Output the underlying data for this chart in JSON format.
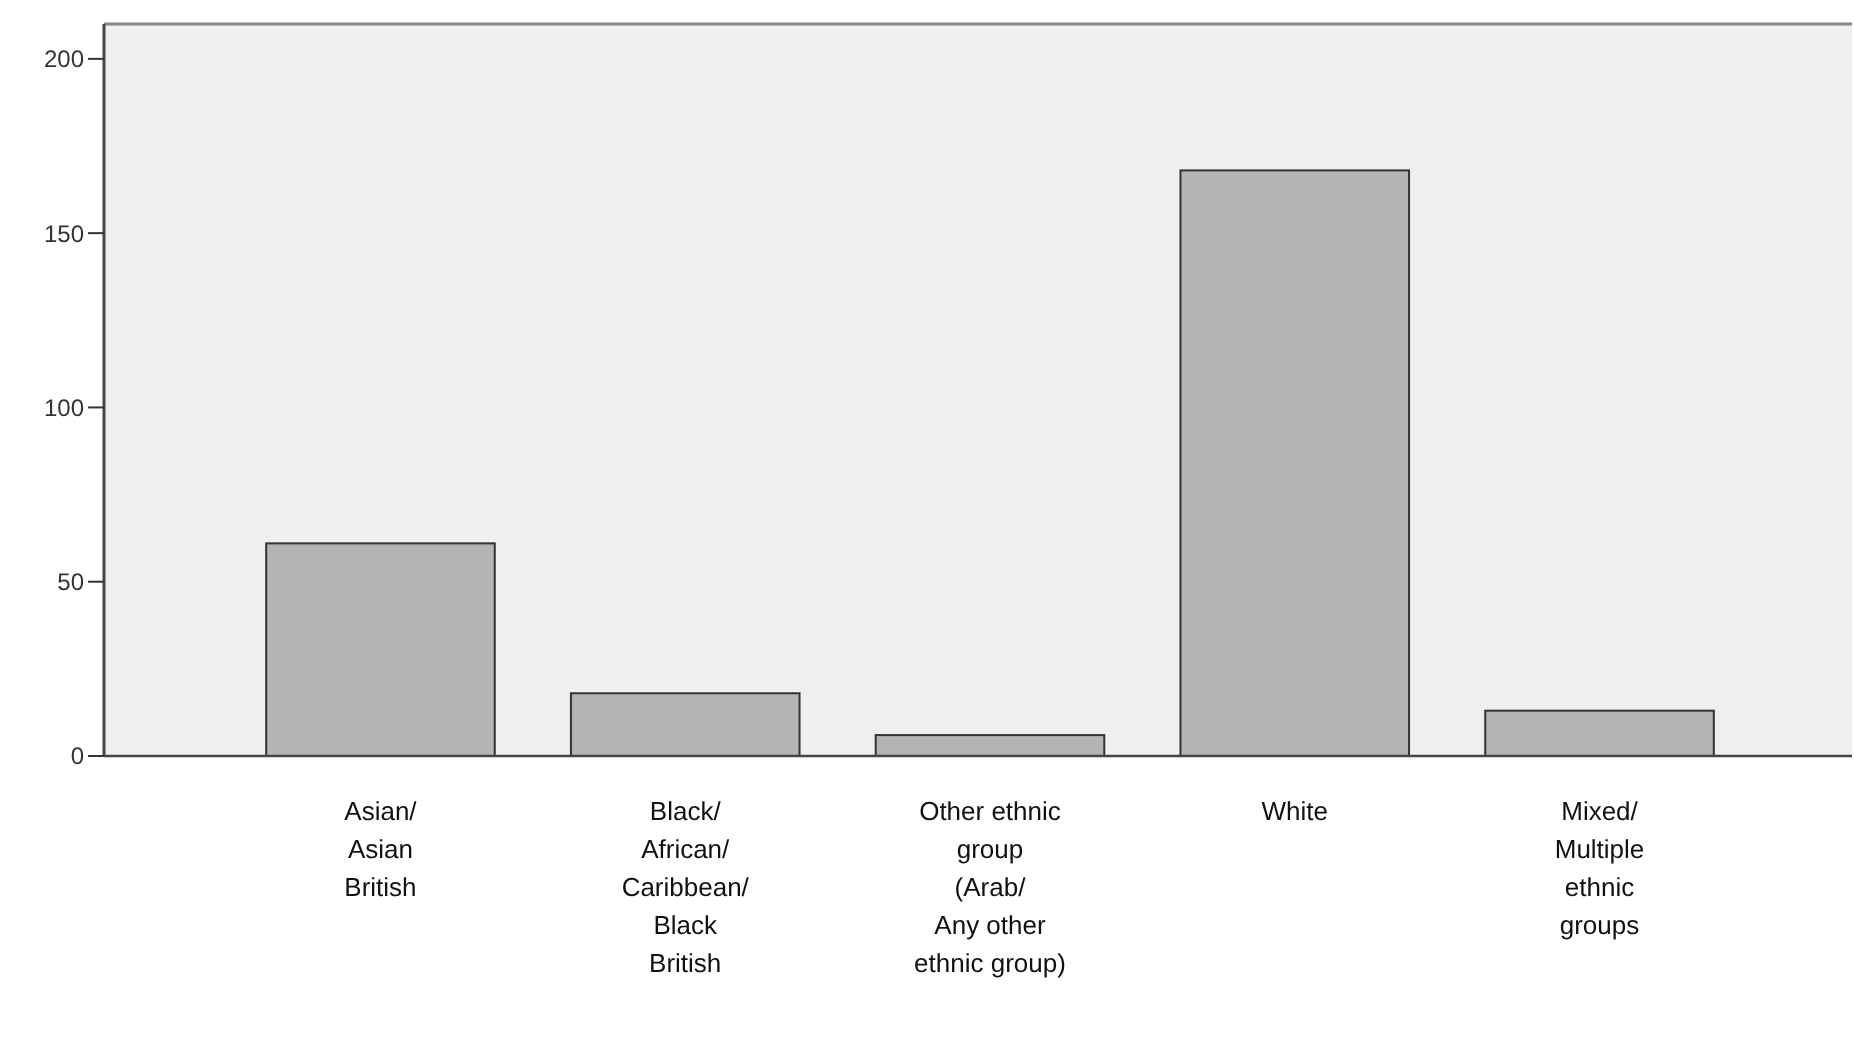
{
  "chart_data": {
    "type": "bar",
    "categories": [
      "Asian/\nAsian\nBritish",
      "Black/\nAfrican/\nCaribbean/\nBlack\nBritish",
      "Other ethnic\ngroup\n(Arab/\nAny other\nethnic group)",
      "White",
      "Mixed/\nMultiple\nethnic\ngroups"
    ],
    "values": [
      61,
      18,
      6,
      168,
      13
    ],
    "color": "#b4b4b4",
    "ylim": [
      0,
      210
    ],
    "yticks": [
      0,
      50,
      100,
      150,
      200
    ],
    "grid": false
  }
}
